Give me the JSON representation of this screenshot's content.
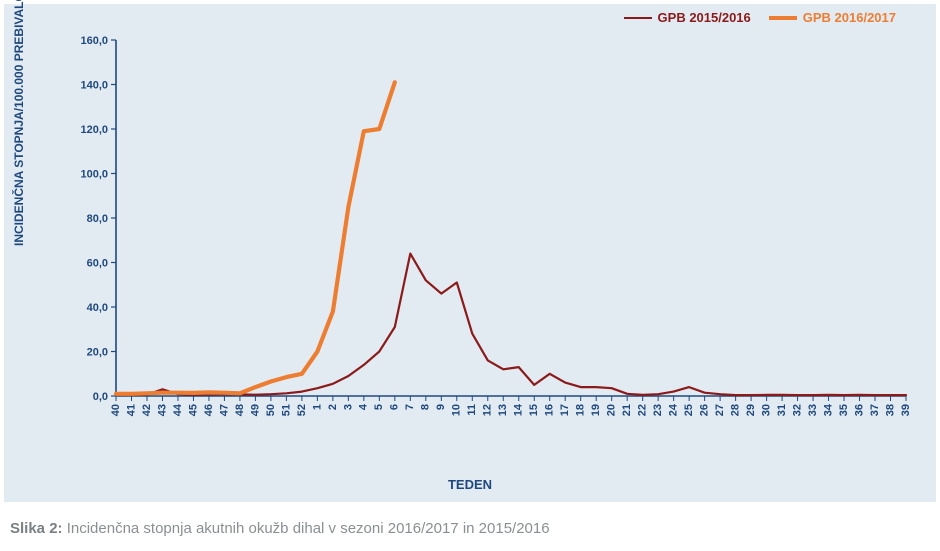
{
  "chart": {
    "type": "line",
    "background_color": "#e3ebf2",
    "plot_background": "#e3ebf2",
    "axis_color": "#1f497d",
    "grid_color": "#e3ebf2",
    "tick_color": "#1f497d",
    "tick_fontsize": 11,
    "tick_fontweight": "bold",
    "ylabel": "INCIDENČNA STOPNJA/100.000 PREBIVALCEV",
    "xlabel": "TEDEN",
    "label_color": "#1f497d",
    "label_fontsize": 12,
    "ylim": [
      0,
      160
    ],
    "ytick_step": 20,
    "ytick_format": ",0",
    "x_categories": [
      "40",
      "41",
      "42",
      "43",
      "44",
      "45",
      "46",
      "47",
      "48",
      "49",
      "50",
      "51",
      "52",
      "1",
      "2",
      "3",
      "4",
      "5",
      "6",
      "7",
      "8",
      "9",
      "10",
      "11",
      "12",
      "13",
      "14",
      "15",
      "16",
      "17",
      "18",
      "19",
      "20",
      "21",
      "22",
      "23",
      "24",
      "25",
      "26",
      "27",
      "28",
      "29",
      "30",
      "31",
      "32",
      "33",
      "34",
      "35",
      "36",
      "37",
      "38",
      "39"
    ],
    "series": [
      {
        "name": "GPB 2015/2016",
        "color": "#8b1a1a",
        "line_width": 2.2,
        "marker": "none",
        "values": [
          0.5,
          0.5,
          0.6,
          3.0,
          0.8,
          0.6,
          0.7,
          0.8,
          0.7,
          0.6,
          0.8,
          1.2,
          2.0,
          3.5,
          5.5,
          9.0,
          14.0,
          20.0,
          31.0,
          64.0,
          52.0,
          46.0,
          51.0,
          28.0,
          16.0,
          12.0,
          13.0,
          5.0,
          10.0,
          6.0,
          4.0,
          4.0,
          3.5,
          1.0,
          0.5,
          0.8,
          2.0,
          4.0,
          1.5,
          0.8,
          0.4,
          0.4,
          0.5,
          0.5,
          0.4,
          0.4,
          0.5,
          0.4,
          0.5,
          0.4,
          0.4,
          0.4
        ]
      },
      {
        "name": "GPB 2016/2017",
        "color": "#ed7d31",
        "line_width": 4.2,
        "marker": "none",
        "values": [
          1.0,
          1.0,
          1.2,
          1.5,
          1.5,
          1.4,
          1.6,
          1.5,
          1.2,
          4.0,
          6.5,
          8.5,
          10.0,
          20.0,
          38.0,
          85.0,
          119.0,
          120.0,
          141.0
        ]
      }
    ],
    "legend": {
      "position": "top-right",
      "fontsize": 13,
      "fontweight": "bold",
      "item_color_text": {
        "GPB 2015/2016": "#8b1a1a",
        "GPB 2016/2017": "#ed7d31"
      }
    }
  },
  "caption": {
    "lead": "Slika 2:",
    "text": "Incidenčna stopnja akutnih okužb dihal v sezoni 2016/2017 in 2015/2016"
  }
}
